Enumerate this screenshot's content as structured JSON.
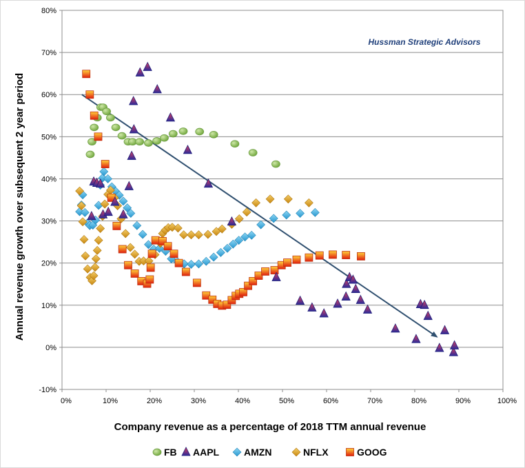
{
  "chart_data": {
    "type": "scatter",
    "title": "",
    "annotation": "Hussman Strategic Advisors",
    "xlabel": "Company revenue as a percentage of 2018 TTM annual revenue",
    "ylabel": "Annual revenue growth over subsequent 2 year period",
    "xlim": [
      0,
      1
    ],
    "ylim": [
      -0.1,
      0.8
    ],
    "x_ticks": [
      "0%",
      "10%",
      "20%",
      "30%",
      "40%",
      "50%",
      "60%",
      "70%",
      "80%",
      "90%",
      "100%"
    ],
    "y_ticks": [
      "-10%",
      "0%",
      "10%",
      "20%",
      "30%",
      "40%",
      "50%",
      "60%",
      "70%",
      "80%"
    ],
    "grid": "horizontal",
    "legend_position": "bottom",
    "trend_arrow": {
      "from": [
        0.045,
        0.6
      ],
      "to": [
        0.85,
        0.025
      ],
      "color": "#2f4f6f"
    },
    "series": [
      {
        "name": "FB",
        "marker": "circle",
        "color": "#8fbf5a",
        "points": [
          [
            0.064,
            0.458
          ],
          [
            0.068,
            0.488
          ],
          [
            0.073,
            0.522
          ],
          [
            0.08,
            0.545
          ],
          [
            0.088,
            0.57
          ],
          [
            0.093,
            0.57
          ],
          [
            0.101,
            0.56
          ],
          [
            0.11,
            0.545
          ],
          [
            0.122,
            0.522
          ],
          [
            0.136,
            0.502
          ],
          [
            0.15,
            0.488
          ],
          [
            0.16,
            0.488
          ],
          [
            0.176,
            0.488
          ],
          [
            0.196,
            0.485
          ],
          [
            0.215,
            0.49
          ],
          [
            0.232,
            0.497
          ],
          [
            0.252,
            0.507
          ],
          [
            0.275,
            0.513
          ],
          [
            0.312,
            0.512
          ],
          [
            0.344,
            0.505
          ],
          [
            0.392,
            0.483
          ],
          [
            0.433,
            0.462
          ],
          [
            0.485,
            0.435
          ]
        ]
      },
      {
        "name": "AAPL",
        "marker": "triangle",
        "color": "#2e2e9e",
        "points": [
          [
            0.067,
            0.311
          ],
          [
            0.072,
            0.393
          ],
          [
            0.079,
            0.39
          ],
          [
            0.087,
            0.388
          ],
          [
            0.093,
            0.315
          ],
          [
            0.105,
            0.321
          ],
          [
            0.12,
            0.345
          ],
          [
            0.139,
            0.315
          ],
          [
            0.152,
            0.382
          ],
          [
            0.158,
            0.454
          ],
          [
            0.162,
            0.584
          ],
          [
            0.163,
            0.517
          ],
          [
            0.177,
            0.652
          ],
          [
            0.194,
            0.665
          ],
          [
            0.216,
            0.612
          ],
          [
            0.246,
            0.545
          ],
          [
            0.285,
            0.468
          ],
          [
            0.332,
            0.388
          ],
          [
            0.385,
            0.298
          ],
          [
            0.486,
            0.166
          ],
          [
            0.54,
            0.11
          ],
          [
            0.567,
            0.094
          ],
          [
            0.594,
            0.08
          ],
          [
            0.625,
            0.103
          ],
          [
            0.644,
            0.12
          ],
          [
            0.645,
            0.15
          ],
          [
            0.652,
            0.166
          ],
          [
            0.66,
            0.16
          ],
          [
            0.666,
            0.138
          ],
          [
            0.677,
            0.112
          ],
          [
            0.693,
            0.089
          ],
          [
            0.756,
            0.044
          ],
          [
            0.803,
            0.019
          ],
          [
            0.813,
            0.102
          ],
          [
            0.822,
            0.1
          ],
          [
            0.83,
            0.074
          ],
          [
            0.856,
            -0.002
          ],
          [
            0.868,
            0.04
          ],
          [
            0.888,
            -0.012
          ],
          [
            0.89,
            0.004
          ]
        ]
      },
      {
        "name": "AMZN",
        "marker": "diamond",
        "color": "#3aa6d8",
        "points": [
          [
            0.04,
            0.322
          ],
          [
            0.044,
            0.338
          ],
          [
            0.047,
            0.362
          ],
          [
            0.052,
            0.32
          ],
          [
            0.058,
            0.295
          ],
          [
            0.063,
            0.289
          ],
          [
            0.07,
            0.29
          ],
          [
            0.076,
            0.302
          ],
          [
            0.083,
            0.337
          ],
          [
            0.087,
            0.385
          ],
          [
            0.092,
            0.402
          ],
          [
            0.095,
            0.417
          ],
          [
            0.104,
            0.4
          ],
          [
            0.113,
            0.381
          ],
          [
            0.122,
            0.37
          ],
          [
            0.13,
            0.361
          ],
          [
            0.139,
            0.347
          ],
          [
            0.148,
            0.331
          ],
          [
            0.156,
            0.318
          ],
          [
            0.17,
            0.289
          ],
          [
            0.183,
            0.268
          ],
          [
            0.196,
            0.244
          ],
          [
            0.208,
            0.233
          ],
          [
            0.221,
            0.235
          ],
          [
            0.235,
            0.228
          ],
          [
            0.248,
            0.21
          ],
          [
            0.262,
            0.203
          ],
          [
            0.277,
            0.198
          ],
          [
            0.293,
            0.197
          ],
          [
            0.31,
            0.198
          ],
          [
            0.327,
            0.204
          ],
          [
            0.344,
            0.214
          ],
          [
            0.36,
            0.225
          ],
          [
            0.375,
            0.235
          ],
          [
            0.388,
            0.245
          ],
          [
            0.401,
            0.254
          ],
          [
            0.415,
            0.262
          ],
          [
            0.43,
            0.266
          ],
          [
            0.451,
            0.291
          ],
          [
            0.48,
            0.306
          ],
          [
            0.509,
            0.314
          ],
          [
            0.54,
            0.318
          ],
          [
            0.574,
            0.32
          ]
        ]
      },
      {
        "name": "NFLX",
        "marker": "diamond",
        "color": "#d99a1c",
        "points": [
          [
            0.04,
            0.371
          ],
          [
            0.044,
            0.336
          ],
          [
            0.047,
            0.298
          ],
          [
            0.05,
            0.256
          ],
          [
            0.053,
            0.217
          ],
          [
            0.058,
            0.186
          ],
          [
            0.064,
            0.166
          ],
          [
            0.068,
            0.158
          ],
          [
            0.072,
            0.17
          ],
          [
            0.075,
            0.19
          ],
          [
            0.077,
            0.21
          ],
          [
            0.08,
            0.23
          ],
          [
            0.083,
            0.254
          ],
          [
            0.087,
            0.282
          ],
          [
            0.092,
            0.311
          ],
          [
            0.097,
            0.34
          ],
          [
            0.104,
            0.363
          ],
          [
            0.11,
            0.373
          ],
          [
            0.119,
            0.355
          ],
          [
            0.126,
            0.336
          ],
          [
            0.134,
            0.305
          ],
          [
            0.144,
            0.27
          ],
          [
            0.155,
            0.237
          ],
          [
            0.165,
            0.221
          ],
          [
            0.175,
            0.204
          ],
          [
            0.185,
            0.205
          ],
          [
            0.197,
            0.205
          ],
          [
            0.211,
            0.22
          ],
          [
            0.223,
            0.247
          ],
          [
            0.228,
            0.27
          ],
          [
            0.234,
            0.278
          ],
          [
            0.241,
            0.284
          ],
          [
            0.25,
            0.285
          ],
          [
            0.263,
            0.283
          ],
          [
            0.276,
            0.267
          ],
          [
            0.293,
            0.267
          ],
          [
            0.31,
            0.267
          ],
          [
            0.331,
            0.268
          ],
          [
            0.35,
            0.275
          ],
          [
            0.363,
            0.281
          ],
          [
            0.385,
            0.292
          ],
          [
            0.402,
            0.305
          ],
          [
            0.419,
            0.321
          ],
          [
            0.44,
            0.343
          ],
          [
            0.472,
            0.352
          ],
          [
            0.513,
            0.352
          ],
          [
            0.56,
            0.343
          ]
        ]
      },
      {
        "name": "GOOG",
        "marker": "square",
        "color": "#e02a10",
        "points": [
          [
            0.055,
            0.649
          ],
          [
            0.063,
            0.6
          ],
          [
            0.073,
            0.55
          ],
          [
            0.082,
            0.5
          ],
          [
            0.098,
            0.435
          ],
          [
            0.112,
            0.355
          ],
          [
            0.124,
            0.288
          ],
          [
            0.137,
            0.233
          ],
          [
            0.15,
            0.195
          ],
          [
            0.165,
            0.175
          ],
          [
            0.18,
            0.157
          ],
          [
            0.193,
            0.151
          ],
          [
            0.199,
            0.161
          ],
          [
            0.201,
            0.189
          ],
          [
            0.204,
            0.222
          ],
          [
            0.212,
            0.254
          ],
          [
            0.228,
            0.252
          ],
          [
            0.24,
            0.24
          ],
          [
            0.254,
            0.222
          ],
          [
            0.265,
            0.2
          ],
          [
            0.281,
            0.179
          ],
          [
            0.306,
            0.153
          ],
          [
            0.327,
            0.123
          ],
          [
            0.341,
            0.113
          ],
          [
            0.352,
            0.103
          ],
          [
            0.363,
            0.099
          ],
          [
            0.374,
            0.101
          ],
          [
            0.385,
            0.112
          ],
          [
            0.394,
            0.122
          ],
          [
            0.402,
            0.127
          ],
          [
            0.411,
            0.131
          ],
          [
            0.422,
            0.146
          ],
          [
            0.433,
            0.157
          ],
          [
            0.446,
            0.17
          ],
          [
            0.461,
            0.18
          ],
          [
            0.482,
            0.183
          ],
          [
            0.498,
            0.195
          ],
          [
            0.511,
            0.201
          ],
          [
            0.532,
            0.208
          ],
          [
            0.56,
            0.213
          ],
          [
            0.584,
            0.218
          ],
          [
            0.614,
            0.22
          ],
          [
            0.644,
            0.219
          ],
          [
            0.678,
            0.216
          ]
        ]
      }
    ]
  }
}
